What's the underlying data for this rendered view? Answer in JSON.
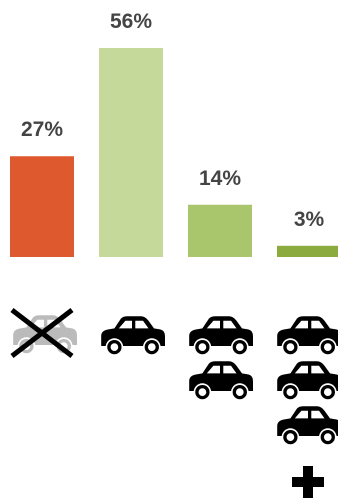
{
  "chart_data": {
    "type": "bar",
    "values": [
      27,
      56,
      14,
      3
    ],
    "value_labels": [
      "27%",
      "56%",
      "14%",
      "3%"
    ],
    "colors": [
      "#de5a2e",
      "#c5d99b",
      "#a9c66c",
      "#8bab3e"
    ]
  }
}
